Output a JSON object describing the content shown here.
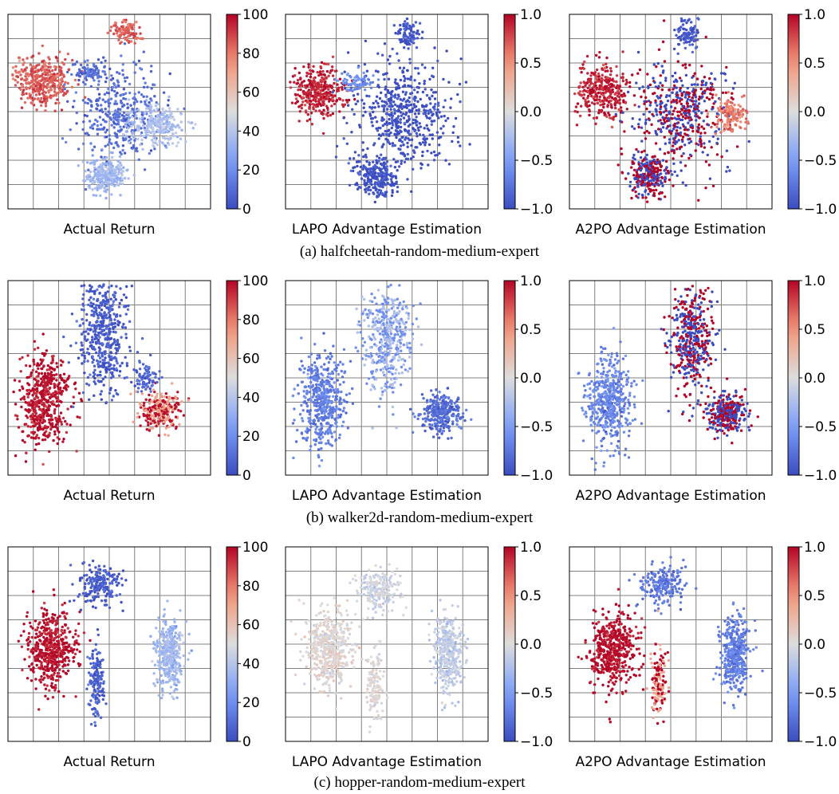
{
  "colors": {
    "colormap": "coolwarm",
    "cold": "#3b4cc0",
    "neutral": "#dddddd",
    "hot": "#b40426",
    "grid": "#808080"
  },
  "chart_data": [
    {
      "type": "scatter",
      "title": "",
      "xlabel": "Actual Return",
      "ylabel": "",
      "grid": true,
      "colorbar": {
        "range": [
          0,
          100
        ],
        "ticks": [
          0,
          20,
          40,
          60,
          80,
          100
        ],
        "tick_labels": [
          "0",
          "20",
          "40",
          "60",
          "80",
          "100"
        ]
      },
      "clusters": [
        {
          "center": [
            0.17,
            0.34
          ],
          "size": [
            0.14,
            0.13
          ],
          "value": 85,
          "count": 380
        },
        {
          "center": [
            0.55,
            0.51
          ],
          "size": [
            0.22,
            0.26
          ],
          "value": 10,
          "count": 360
        },
        {
          "center": [
            0.74,
            0.57
          ],
          "size": [
            0.14,
            0.11
          ],
          "value": 38,
          "count": 260
        },
        {
          "center": [
            0.48,
            0.83
          ],
          "size": [
            0.1,
            0.08
          ],
          "value": 35,
          "count": 260
        },
        {
          "center": [
            0.58,
            0.09
          ],
          "size": [
            0.06,
            0.06
          ],
          "value": 85,
          "count": 110
        },
        {
          "center": [
            0.4,
            0.3
          ],
          "size": [
            0.08,
            0.05
          ],
          "value": 10,
          "count": 80
        }
      ]
    },
    {
      "type": "scatter",
      "title": "",
      "xlabel": "LAPO Advantage Estimation",
      "ylabel": "",
      "grid": true,
      "colorbar": {
        "range": [
          -1.0,
          1.0
        ],
        "ticks": [
          -1.0,
          -0.5,
          0.0,
          0.5,
          1.0
        ],
        "tick_labels": [
          "−1.0",
          "−0.5",
          "0.0",
          "0.5",
          "1.0"
        ]
      },
      "clusters": [
        {
          "center": [
            0.16,
            0.4
          ],
          "size": [
            0.13,
            0.14
          ],
          "value": 0.9,
          "count": 340
        },
        {
          "center": [
            0.58,
            0.51
          ],
          "size": [
            0.22,
            0.27
          ],
          "value": -1.0,
          "count": 520
        },
        {
          "center": [
            0.45,
            0.83
          ],
          "size": [
            0.1,
            0.1
          ],
          "value": -0.95,
          "count": 260
        },
        {
          "center": [
            0.6,
            0.1
          ],
          "size": [
            0.05,
            0.08
          ],
          "value": -0.95,
          "count": 90
        },
        {
          "center": [
            0.35,
            0.35
          ],
          "size": [
            0.08,
            0.05
          ],
          "value": -0.6,
          "count": 70
        }
      ]
    },
    {
      "type": "scatter",
      "title": "",
      "xlabel": "A2PO Advantage Estimation",
      "ylabel": "",
      "grid": true,
      "colorbar": {
        "range": [
          -1.0,
          1.0
        ],
        "ticks": [
          -1.0,
          -0.5,
          0.0,
          0.5,
          1.0
        ],
        "tick_labels": [
          "−1.0",
          "−0.5",
          "0.0",
          "0.5",
          "1.0"
        ]
      },
      "clusters": [
        {
          "center": [
            0.16,
            0.4
          ],
          "size": [
            0.13,
            0.14
          ],
          "value": 0.9,
          "count": 340
        },
        {
          "center": [
            0.55,
            0.51
          ],
          "size": [
            0.24,
            0.27
          ],
          "value": -0.2,
          "count": 520,
          "mix": [
            1.0,
            -1.0
          ]
        },
        {
          "center": [
            0.4,
            0.83
          ],
          "size": [
            0.1,
            0.1
          ],
          "value": -0.5,
          "count": 260,
          "mix": [
            1.0,
            -1.0
          ]
        },
        {
          "center": [
            0.8,
            0.52
          ],
          "size": [
            0.08,
            0.1
          ],
          "value": 0.6,
          "count": 140
        },
        {
          "center": [
            0.58,
            0.1
          ],
          "size": [
            0.06,
            0.08
          ],
          "value": -0.95,
          "count": 90
        }
      ]
    },
    {
      "type": "scatter",
      "title": "",
      "xlabel": "Actual Return",
      "ylabel": "",
      "grid": true,
      "colorbar": {
        "range": [
          0,
          100
        ],
        "ticks": [
          0,
          20,
          40,
          60,
          80,
          100
        ],
        "tick_labels": [
          "0",
          "20",
          "40",
          "60",
          "80",
          "100"
        ]
      },
      "clusters": [
        {
          "center": [
            0.18,
            0.62
          ],
          "size": [
            0.11,
            0.24
          ],
          "value": 98,
          "count": 520
        },
        {
          "center": [
            0.47,
            0.28
          ],
          "size": [
            0.12,
            0.3
          ],
          "value": 5,
          "count": 480
        },
        {
          "center": [
            0.75,
            0.67
          ],
          "size": [
            0.1,
            0.1
          ],
          "value": 88,
          "count": 300,
          "mix": [
            98,
            70
          ]
        },
        {
          "center": [
            0.68,
            0.5
          ],
          "size": [
            0.06,
            0.08
          ],
          "value": 8,
          "count": 80
        }
      ]
    },
    {
      "type": "scatter",
      "title": "",
      "xlabel": "LAPO Advantage Estimation",
      "ylabel": "",
      "grid": true,
      "colorbar": {
        "range": [
          -1.0,
          1.0
        ],
        "ticks": [
          -1.0,
          -0.5,
          0.0,
          0.5,
          1.0
        ],
        "tick_labels": [
          "−1.0",
          "−0.5",
          "0.0",
          "0.5",
          "1.0"
        ]
      },
      "clusters": [
        {
          "center": [
            0.18,
            0.62
          ],
          "size": [
            0.11,
            0.24
          ],
          "value": -0.7,
          "count": 480
        },
        {
          "center": [
            0.5,
            0.3
          ],
          "size": [
            0.12,
            0.28
          ],
          "value": -0.65,
          "count": 440,
          "mix": [
            -0.6,
            -0.25
          ]
        },
        {
          "center": [
            0.77,
            0.68
          ],
          "size": [
            0.1,
            0.1
          ],
          "value": -0.8,
          "count": 300
        }
      ]
    },
    {
      "type": "scatter",
      "title": "",
      "xlabel": "A2PO Advantage Estimation",
      "ylabel": "",
      "grid": true,
      "colorbar": {
        "range": [
          -1.0,
          1.0
        ],
        "ticks": [
          -1.0,
          -0.5,
          0.0,
          0.5,
          1.0
        ],
        "tick_labels": [
          "−1.0",
          "−0.5",
          "0.0",
          "0.5",
          "1.0"
        ]
      },
      "clusters": [
        {
          "center": [
            0.2,
            0.62
          ],
          "size": [
            0.11,
            0.24
          ],
          "value": -0.65,
          "count": 480
        },
        {
          "center": [
            0.6,
            0.3
          ],
          "size": [
            0.11,
            0.28
          ],
          "value": 0.0,
          "count": 440,
          "mix": [
            1.0,
            -1.0
          ]
        },
        {
          "center": [
            0.78,
            0.68
          ],
          "size": [
            0.1,
            0.1
          ],
          "value": 0.3,
          "count": 300,
          "mix": [
            1.0,
            -1.0
          ]
        }
      ]
    },
    {
      "type": "scatter",
      "title": "",
      "xlabel": "Actual Return",
      "ylabel": "",
      "grid": true,
      "colorbar": {
        "range": [
          0,
          100
        ],
        "ticks": [
          0,
          20,
          40,
          60,
          80,
          100
        ],
        "tick_labels": [
          "0",
          "20",
          "40",
          "60",
          "80",
          "100"
        ]
      },
      "clusters": [
        {
          "center": [
            0.22,
            0.52
          ],
          "size": [
            0.12,
            0.2
          ],
          "value": 98,
          "count": 480
        },
        {
          "center": [
            0.46,
            0.2
          ],
          "size": [
            0.1,
            0.1
          ],
          "value": 5,
          "count": 200
        },
        {
          "center": [
            0.44,
            0.7
          ],
          "size": [
            0.04,
            0.18
          ],
          "value": 5,
          "count": 140
        },
        {
          "center": [
            0.8,
            0.55
          ],
          "size": [
            0.07,
            0.19
          ],
          "value": 35,
          "count": 380
        }
      ]
    },
    {
      "type": "scatter",
      "title": "",
      "xlabel": "LAPO Advantage Estimation",
      "ylabel": "",
      "grid": true,
      "colorbar": {
        "range": [
          -1.0,
          1.0
        ],
        "ticks": [
          -1.0,
          -0.5,
          0.0,
          0.5,
          1.0
        ],
        "tick_labels": [
          "−1.0",
          "−0.5",
          "0.0",
          "0.5",
          "1.0"
        ]
      },
      "clusters": [
        {
          "center": [
            0.22,
            0.52
          ],
          "size": [
            0.12,
            0.2
          ],
          "value": 0.05,
          "count": 480
        },
        {
          "center": [
            0.46,
            0.22
          ],
          "size": [
            0.1,
            0.1
          ],
          "value": -0.08,
          "count": 200
        },
        {
          "center": [
            0.44,
            0.7
          ],
          "size": [
            0.04,
            0.18
          ],
          "value": 0.05,
          "count": 140
        },
        {
          "center": [
            0.8,
            0.55
          ],
          "size": [
            0.07,
            0.19
          ],
          "value": -0.15,
          "count": 380
        }
      ]
    },
    {
      "type": "scatter",
      "title": "",
      "xlabel": "A2PO Advantage Estimation",
      "ylabel": "",
      "grid": true,
      "colorbar": {
        "range": [
          -1.0,
          1.0
        ],
        "ticks": [
          -1.0,
          -0.5,
          0.0,
          0.5,
          1.0
        ],
        "tick_labels": [
          "−1.0",
          "−0.5",
          "0.0",
          "0.5",
          "1.0"
        ]
      },
      "clusters": [
        {
          "center": [
            0.22,
            0.52
          ],
          "size": [
            0.12,
            0.2
          ],
          "value": 0.98,
          "count": 480
        },
        {
          "center": [
            0.46,
            0.2
          ],
          "size": [
            0.1,
            0.1
          ],
          "value": -0.75,
          "count": 200
        },
        {
          "center": [
            0.44,
            0.7
          ],
          "size": [
            0.04,
            0.18
          ],
          "value": 0.7,
          "count": 140,
          "mix": [
            1.0,
            0.4
          ]
        },
        {
          "center": [
            0.82,
            0.55
          ],
          "size": [
            0.07,
            0.19
          ],
          "value": -0.7,
          "count": 380
        }
      ]
    }
  ],
  "captions": [
    "(a) halfcheetah-random-medium-expert",
    "(b) walker2d-random-medium-expert",
    "(c) hopper-random-medium-expert"
  ]
}
